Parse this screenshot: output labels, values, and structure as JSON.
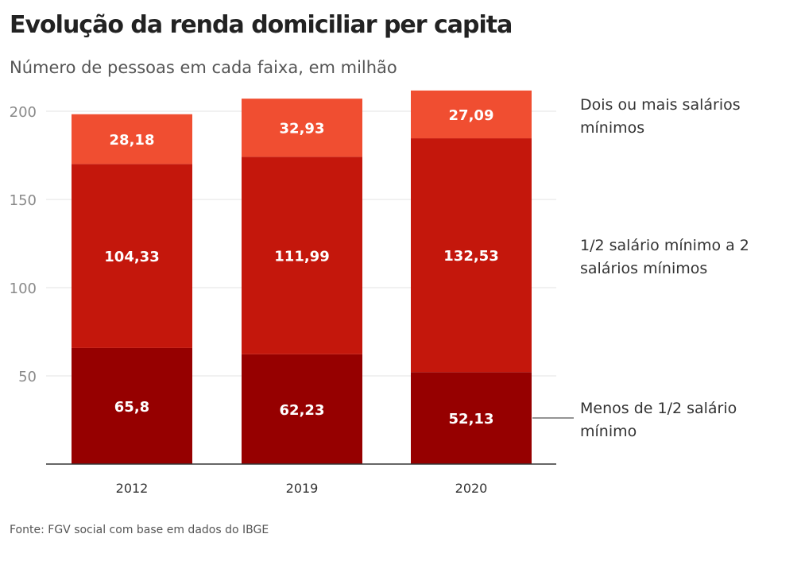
{
  "header": {
    "title": "Evolução da renda domiciliar per capita",
    "subtitle": "Número de pessoas em cada faixa, em milhão"
  },
  "footer": {
    "source": "Fonte: FGV social com base em dados do IBGE"
  },
  "chart_data": {
    "type": "bar",
    "stacked": true,
    "categories": [
      "2012",
      "2019",
      "2020"
    ],
    "series": [
      {
        "name": "Menos de 1/2 salário mínimo",
        "values": [
          65.8,
          62.23,
          52.13
        ],
        "labels": [
          "65,8",
          "62,23",
          "52,13"
        ],
        "color": "#960000"
      },
      {
        "name": "1/2 salário mínimo a 2 salários mínimos",
        "values": [
          104.33,
          111.99,
          132.53
        ],
        "labels": [
          "104,33",
          "111,99",
          "132,53"
        ],
        "color": "#c4170c"
      },
      {
        "name": "Dois ou mais salários mínimos",
        "values": [
          28.18,
          32.93,
          27.09
        ],
        "labels": [
          "28,18",
          "32,93",
          "27,09"
        ],
        "color": "#f04e31"
      }
    ],
    "yticks": [
      50,
      100,
      150,
      200
    ],
    "ylim": [
      0,
      215
    ],
    "grid": true,
    "legend_position": "right"
  }
}
